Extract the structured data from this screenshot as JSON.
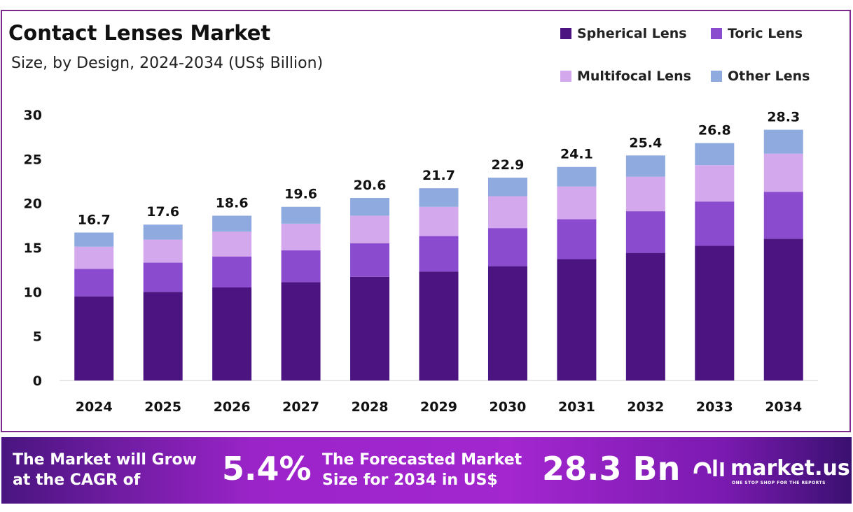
{
  "chart_data": {
    "type": "bar",
    "stacked": true,
    "title": "Contact Lenses Market",
    "subtitle": "Size, by Design, 2024-2034 (US$ Billion)",
    "xlabel": "",
    "ylabel": "",
    "ylim": [
      0,
      30
    ],
    "yticks": [
      "0",
      "5",
      "10",
      "15",
      "20",
      "25",
      "30"
    ],
    "grid": false,
    "legend_position": "top-right",
    "categories": [
      "2024",
      "2025",
      "2026",
      "2027",
      "2028",
      "2029",
      "2030",
      "2031",
      "2032",
      "2033",
      "2034"
    ],
    "totals": [
      "16.7",
      "17.6",
      "18.6",
      "19.6",
      "20.6",
      "21.7",
      "22.9",
      "24.1",
      "25.4",
      "26.8",
      "28.3"
    ],
    "series": [
      {
        "name": "Spherical Lens",
        "color": "#4b1480",
        "values": [
          9.5,
          10.0,
          10.5,
          11.1,
          11.7,
          12.3,
          12.9,
          13.7,
          14.4,
          15.2,
          16.0
        ]
      },
      {
        "name": "Toric Lens",
        "color": "#8a4bcf",
        "values": [
          3.1,
          3.3,
          3.5,
          3.6,
          3.8,
          4.0,
          4.3,
          4.5,
          4.7,
          5.0,
          5.3
        ]
      },
      {
        "name": "Multifocal Lens",
        "color": "#d4a8ec",
        "values": [
          2.5,
          2.6,
          2.8,
          3.0,
          3.1,
          3.3,
          3.6,
          3.7,
          3.9,
          4.1,
          4.3
        ]
      },
      {
        "name": "Other Lens",
        "color": "#8eaadf",
        "values": [
          1.6,
          1.7,
          1.8,
          1.9,
          2.0,
          2.1,
          2.1,
          2.2,
          2.4,
          2.5,
          2.7
        ]
      }
    ]
  },
  "banner": {
    "cagr_text_1": "The Market will Grow",
    "cagr_text_2": "at the CAGR of",
    "cagr_value": "5.4%",
    "forecast_text_1": "The Forecasted Market",
    "forecast_text_2": "Size for 2034 in US$",
    "forecast_value": "28.3 Bn",
    "logo_text": "market.us",
    "logo_tagline": "ONE STOP SHOP FOR THE REPORTS"
  }
}
